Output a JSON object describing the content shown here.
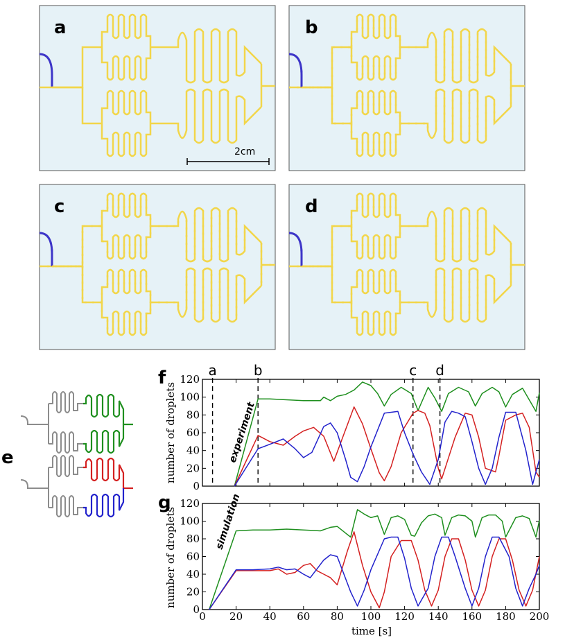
{
  "panels": {
    "a": {
      "letter": "a",
      "scale_bar": "2cm"
    },
    "b": {
      "letter": "b"
    },
    "c": {
      "letter": "c"
    },
    "d": {
      "letter": "d"
    },
    "e": {
      "letter": "e"
    },
    "f": {
      "letter": "f",
      "note": "experiment"
    },
    "g": {
      "letter": "g",
      "note": "simulation"
    }
  },
  "colors": {
    "chip_background": "#e6f2f7",
    "channel_yellow": "#f2d64a",
    "droplet_blue": "#3333cc",
    "inlet_blue": "#3d35c8",
    "series_green": "#1e8f1e",
    "series_red": "#d42020",
    "series_blue": "#2222cc",
    "schematic_grey": "#8c8c8c"
  },
  "chart_data": [
    {
      "id": "f",
      "type": "line",
      "ylabel": "number of droplets",
      "xlabel": "",
      "xlim": [
        0,
        200
      ],
      "ylim": [
        0,
        120
      ],
      "yticks": [
        0,
        20,
        40,
        60,
        80,
        100,
        120
      ],
      "xticks": [
        0,
        20,
        40,
        60,
        80,
        100,
        120,
        140,
        160,
        180,
        200
      ],
      "show_x_tick_labels": false,
      "markers": [
        {
          "label": "a",
          "x": 6
        },
        {
          "label": "b",
          "x": 33
        },
        {
          "label": "c",
          "x": 125
        },
        {
          "label": "d",
          "x": 141
        }
      ],
      "series": [
        {
          "color": "green",
          "x": [
            19,
            33,
            40,
            50,
            60,
            70,
            72,
            76,
            80,
            85,
            90,
            95,
            100,
            104,
            108,
            112,
            118,
            124,
            128,
            134,
            138,
            142,
            146,
            152,
            158,
            162,
            166,
            172,
            176,
            180,
            184,
            190,
            194,
            198,
            200
          ],
          "y": [
            0,
            98,
            98,
            97,
            96,
            96,
            100,
            96,
            101,
            103,
            108,
            117,
            113,
            104,
            90,
            103,
            111,
            104,
            85,
            111,
            99,
            84,
            104,
            111,
            106,
            90,
            104,
            111,
            106,
            89,
            103,
            110,
            97,
            84,
            105
          ]
        },
        {
          "color": "red",
          "x": [
            19,
            33,
            40,
            48,
            55,
            60,
            66,
            72,
            78,
            90,
            95,
            100,
            105,
            108,
            112,
            118,
            125,
            128,
            132,
            135,
            140,
            142,
            150,
            156,
            160,
            164,
            168,
            174,
            176,
            180,
            186,
            190,
            194,
            198,
            200
          ],
          "y": [
            0,
            57,
            50,
            46,
            56,
            62,
            66,
            56,
            28,
            89,
            70,
            42,
            15,
            6,
            22,
            60,
            82,
            85,
            82,
            68,
            20,
            8,
            55,
            82,
            80,
            55,
            20,
            16,
            34,
            74,
            80,
            82,
            66,
            16,
            10
          ]
        },
        {
          "color": "blue",
          "x": [
            19,
            33,
            40,
            48,
            55,
            60,
            65,
            72,
            76,
            80,
            85,
            88,
            92,
            96,
            100,
            108,
            112,
            116,
            120,
            125,
            130,
            135,
            140,
            144,
            148,
            152,
            156,
            160,
            164,
            168,
            172,
            176,
            180,
            186,
            192,
            196,
            200
          ],
          "y": [
            0,
            42,
            47,
            53,
            42,
            32,
            38,
            67,
            71,
            60,
            30,
            10,
            5,
            22,
            44,
            82,
            83,
            84,
            60,
            36,
            16,
            2,
            30,
            72,
            84,
            82,
            78,
            50,
            20,
            2,
            20,
            55,
            83,
            83,
            40,
            2,
            30
          ]
        }
      ]
    },
    {
      "id": "g",
      "type": "line",
      "xlabel": "time [s]",
      "ylabel": "number of droplets",
      "xlim": [
        0,
        200
      ],
      "ylim": [
        0,
        120
      ],
      "yticks": [
        0,
        20,
        40,
        60,
        80,
        100,
        120
      ],
      "xticks": [
        0,
        20,
        40,
        60,
        80,
        100,
        120,
        140,
        160,
        180,
        200
      ],
      "show_x_tick_labels": true,
      "series": [
        {
          "color": "green",
          "x": [
            4,
            20,
            30,
            40,
            50,
            60,
            70,
            76,
            80,
            84,
            88,
            92,
            96,
            100,
            104,
            108,
            112,
            116,
            120,
            124,
            126,
            130,
            134,
            138,
            142,
            144,
            148,
            152,
            156,
            160,
            162,
            166,
            170,
            174,
            178,
            180,
            186,
            190,
            194,
            198,
            200
          ],
          "y": [
            0,
            89,
            90,
            90,
            91,
            90,
            89,
            93,
            94,
            88,
            82,
            113,
            108,
            104,
            106,
            85,
            104,
            106,
            102,
            84,
            83,
            98,
            106,
            108,
            104,
            84,
            104,
            107,
            106,
            100,
            82,
            104,
            107,
            107,
            100,
            82,
            104,
            106,
            103,
            82,
            101
          ]
        },
        {
          "color": "red",
          "x": [
            4,
            20,
            30,
            40,
            45,
            50,
            55,
            60,
            64,
            68,
            72,
            76,
            80,
            86,
            90,
            95,
            100,
            105,
            108,
            112,
            118,
            124,
            128,
            132,
            136,
            140,
            144,
            148,
            152,
            156,
            160,
            164,
            168,
            172,
            176,
            180,
            184,
            188,
            192,
            196,
            200
          ],
          "y": [
            0,
            44,
            44,
            44,
            46,
            40,
            42,
            50,
            52,
            44,
            40,
            36,
            28,
            66,
            88,
            50,
            20,
            2,
            20,
            60,
            78,
            78,
            56,
            22,
            4,
            22,
            60,
            80,
            80,
            56,
            22,
            4,
            22,
            60,
            80,
            80,
            56,
            22,
            4,
            22,
            60
          ]
        },
        {
          "color": "blue",
          "x": [
            4,
            20,
            30,
            40,
            45,
            50,
            55,
            60,
            64,
            68,
            72,
            76,
            80,
            84,
            88,
            92,
            96,
            100,
            108,
            112,
            116,
            120,
            124,
            128,
            134,
            138,
            142,
            146,
            150,
            156,
            160,
            164,
            168,
            172,
            176,
            182,
            186,
            190,
            194,
            198,
            200
          ],
          "y": [
            0,
            45,
            45,
            46,
            48,
            45,
            46,
            40,
            36,
            46,
            56,
            62,
            60,
            40,
            20,
            4,
            22,
            45,
            80,
            82,
            82,
            58,
            24,
            4,
            24,
            60,
            82,
            82,
            60,
            24,
            4,
            24,
            60,
            82,
            82,
            60,
            24,
            4,
            24,
            40,
            50
          ]
        }
      ]
    }
  ]
}
